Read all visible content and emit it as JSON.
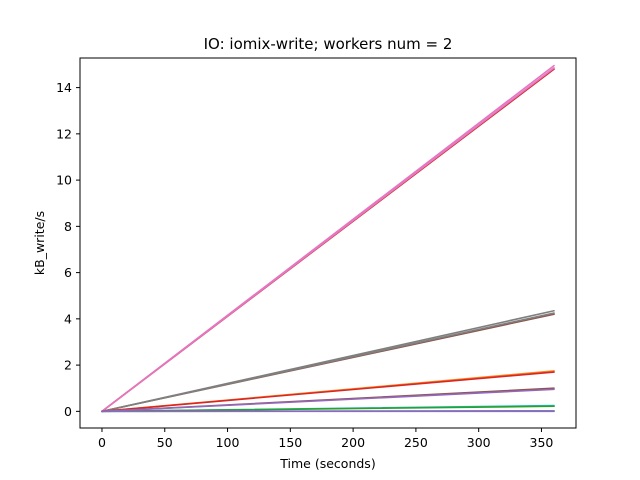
{
  "chart_data": {
    "type": "line",
    "title": "IO: iomix-write; workers num = 2",
    "xlabel": "Time (seconds)",
    "ylabel": "kB_write/s",
    "xlim": [
      -17.5,
      377.5
    ],
    "ylim": [
      -0.72,
      15.28
    ],
    "xticks": [
      0,
      50,
      100,
      150,
      200,
      250,
      300,
      350
    ],
    "yticks": [
      0,
      2,
      4,
      6,
      8,
      10,
      12,
      14
    ],
    "grid": false,
    "legend": "none",
    "series": [
      {
        "color": "#e377c2",
        "x": [
          0,
          360
        ],
        "y": [
          0,
          14.95
        ]
      },
      {
        "color": "#d62728",
        "x": [
          0,
          360
        ],
        "y": [
          0,
          14.8
        ]
      },
      {
        "color": "#e377c2",
        "x": [
          0,
          360
        ],
        "y": [
          0,
          14.85
        ]
      },
      {
        "color": "#7f7f7f",
        "x": [
          0,
          360
        ],
        "y": [
          0,
          4.35
        ]
      },
      {
        "color": "#8c564b",
        "x": [
          0,
          360
        ],
        "y": [
          0,
          4.2
        ]
      },
      {
        "color": "#7f7f7f",
        "x": [
          0,
          360
        ],
        "y": [
          0,
          4.25
        ]
      },
      {
        "color": "#ff7f0e",
        "x": [
          0,
          360
        ],
        "y": [
          0,
          1.75
        ]
      },
      {
        "color": "#d62728",
        "x": [
          0,
          360
        ],
        "y": [
          0,
          1.7
        ]
      },
      {
        "color": "#8c564b",
        "x": [
          0,
          360
        ],
        "y": [
          0,
          1.0
        ]
      },
      {
        "color": "#9467bd",
        "x": [
          0,
          360
        ],
        "y": [
          0,
          0.95
        ]
      },
      {
        "color": "#17becf",
        "x": [
          0,
          360
        ],
        "y": [
          0,
          0.25
        ]
      },
      {
        "color": "#2ca02c",
        "x": [
          0,
          360
        ],
        "y": [
          0,
          0.22
        ]
      },
      {
        "color": "#1f77b4",
        "x": [
          0,
          360
        ],
        "y": [
          0,
          0.02
        ]
      },
      {
        "color": "#9467bd",
        "x": [
          0,
          360
        ],
        "y": [
          0,
          0.0
        ]
      }
    ]
  }
}
